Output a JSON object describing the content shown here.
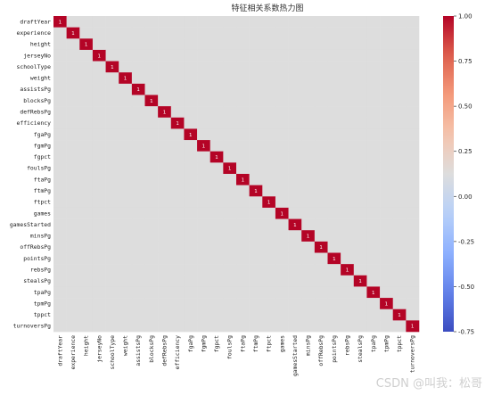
{
  "chart_data": {
    "type": "heatmap",
    "title": "特征相关系数热力图",
    "labels": [
      "draftYear",
      "experience",
      "height",
      "jerseyNo",
      "schoolType",
      "weight",
      "assistsPg",
      "blocksPg",
      "defRebsPg",
      "efficiency",
      "fgaPg",
      "fgmPg",
      "fgpct",
      "foulsPg",
      "ftaPg",
      "ftmPg",
      "ftpct",
      "games",
      "gamesStarted",
      "minsPg",
      "offRebsPg",
      "pointsPg",
      "rebsPg",
      "stealsPg",
      "tpaPg",
      "tpmPg",
      "tppct",
      "turnoversPg"
    ],
    "diagonal_value": "1",
    "colorbar": {
      "range": [
        -0.75,
        1.0
      ],
      "ticks": [
        "1.00",
        "0.75",
        "0.50",
        "0.25",
        "0.00",
        "-0.25",
        "-0.50",
        "-0.75"
      ],
      "colormap": "coolwarm"
    }
  },
  "watermark": "CSDN @叫我：松哥"
}
